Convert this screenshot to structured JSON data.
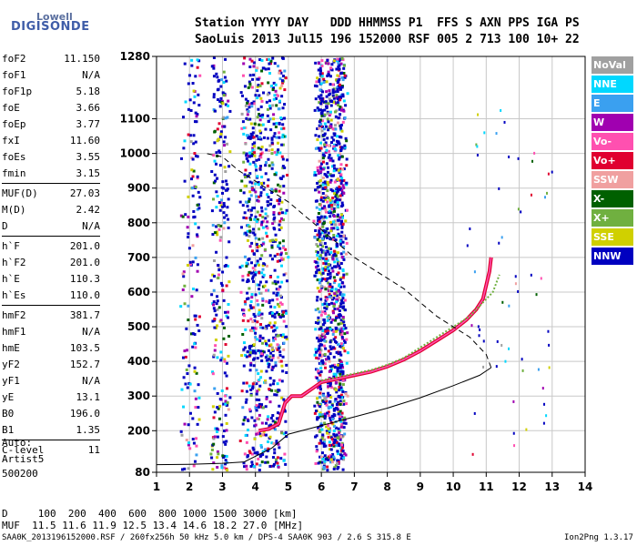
{
  "logo": {
    "top": "Lowell",
    "bottom": "DIGISONDE"
  },
  "header": {
    "line1": "Station YYYY DAY   DDD HHMMSS P1  FFS S AXN PPS IGA PS",
    "line2": "SaoLuis 2013 Jul15 196 152000 RSF 005 2 713 100 10+ 22"
  },
  "params": [
    {
      "group": [
        [
          "foF2",
          "11.150"
        ],
        [
          "foF1",
          "N/A"
        ],
        [
          "foF1p",
          "5.18"
        ],
        [
          "foE",
          "3.66"
        ],
        [
          "foEp",
          "3.77"
        ],
        [
          "fxI",
          "11.60"
        ],
        [
          "foEs",
          "3.55"
        ],
        [
          "fmin",
          "3.15"
        ]
      ]
    },
    {
      "group": [
        [
          "MUF(D)",
          "27.03"
        ],
        [
          "M(D)",
          "2.42"
        ],
        [
          "D",
          "N/A"
        ]
      ]
    },
    {
      "group": [
        [
          "h`F",
          "201.0"
        ],
        [
          "h`F2",
          "201.0"
        ],
        [
          "h`E",
          "110.3"
        ],
        [
          "h`Es",
          "110.0"
        ]
      ]
    },
    {
      "group": [
        [
          "hmF2",
          "381.7"
        ],
        [
          "hmF1",
          "N/A"
        ],
        [
          "hmE",
          "103.5"
        ],
        [
          "yF2",
          "152.7"
        ],
        [
          "yF1",
          "N/A"
        ],
        [
          "yE",
          "13.1"
        ],
        [
          "B0",
          "196.0"
        ],
        [
          "B1",
          "1.35"
        ]
      ]
    },
    {
      "group": [
        [
          "C-level",
          "11"
        ]
      ]
    }
  ],
  "notes": [
    "Auto:",
    "Artist5",
    "500200"
  ],
  "dmuf": {
    "d_line": "D     100  200  400  600  800 1000 1500 3000 [km]",
    "muf_line": "MUF  11.5 11.6 11.9 12.5 13.4 14.6 18.2 27.0 [MHz]"
  },
  "footer": {
    "left": "SAA0K_2013196152000.RSF / 260fx256h 50 kHz 5.0 km / DPS-4 SAA0K 903 / 2.6 S 315.8 E",
    "right": "Ion2Png 1.3.17"
  },
  "legend": [
    {
      "label": "NoVal",
      "color": "#a0a0a0"
    },
    {
      "label": "NNE",
      "color": "#00d8ff"
    },
    {
      "label": "E",
      "color": "#3aa0f0"
    },
    {
      "label": "W",
      "color": "#a000b0"
    },
    {
      "label": "Vo-",
      "color": "#ff50b0"
    },
    {
      "label": "Vo+",
      "color": "#e00030"
    },
    {
      "label": "SSW",
      "color": "#f0a0a0"
    },
    {
      "label": "X-",
      "color": "#006000"
    },
    {
      "label": "X+",
      "color": "#70b040"
    },
    {
      "label": "SSE",
      "color": "#d0d000"
    },
    {
      "label": "NNW",
      "color": "#0000c0"
    }
  ],
  "chart_data": {
    "type": "scatter",
    "title": "",
    "xlabel": "",
    "ylabel": "",
    "x_unit": "MHz",
    "y_unit": "km",
    "xlim": [
      1,
      14
    ],
    "ylim": [
      80,
      1280
    ],
    "x_ticks": [
      1,
      2,
      3,
      4,
      5,
      6,
      7,
      8,
      9,
      10,
      11,
      12,
      13,
      14
    ],
    "y_ticks": [
      80,
      200,
      300,
      400,
      500,
      600,
      700,
      800,
      900,
      1000,
      1100,
      1280
    ],
    "grid": true,
    "legend_position": "right",
    "series": [
      {
        "kind": "o-trace",
        "points": [
          [
            4.1,
            200
          ],
          [
            4.4,
            205
          ],
          [
            4.7,
            220
          ],
          [
            4.9,
            280
          ],
          [
            5.1,
            300
          ],
          [
            5.4,
            300
          ],
          [
            5.7,
            320
          ],
          [
            6.0,
            340
          ],
          [
            6.5,
            350
          ],
          [
            7.0,
            360
          ],
          [
            7.5,
            370
          ],
          [
            8.0,
            385
          ],
          [
            8.5,
            405
          ],
          [
            9.0,
            430
          ],
          [
            9.5,
            460
          ],
          [
            10.0,
            490
          ],
          [
            10.4,
            520
          ],
          [
            10.7,
            550
          ],
          [
            10.9,
            580
          ],
          [
            11.0,
            620
          ],
          [
            11.1,
            660
          ],
          [
            11.15,
            700
          ]
        ]
      },
      {
        "kind": "x-trace",
        "points": [
          [
            6.0,
            345
          ],
          [
            6.5,
            355
          ],
          [
            7.0,
            365
          ],
          [
            7.5,
            375
          ],
          [
            8.0,
            390
          ],
          [
            8.5,
            410
          ],
          [
            9.0,
            440
          ],
          [
            9.5,
            470
          ],
          [
            10.0,
            500
          ],
          [
            10.5,
            530
          ],
          [
            10.9,
            570
          ],
          [
            11.2,
            600
          ],
          [
            11.4,
            650
          ]
        ]
      },
      {
        "kind": "true-height-profile",
        "points": [
          [
            1,
            102
          ],
          [
            2,
            103
          ],
          [
            3,
            106
          ],
          [
            3.66,
            110
          ],
          [
            4.5,
            150
          ],
          [
            5,
            190
          ],
          [
            6,
            215
          ],
          [
            7,
            240
          ],
          [
            8,
            265
          ],
          [
            9,
            295
          ],
          [
            10,
            330
          ],
          [
            10.8,
            360
          ],
          [
            11.15,
            382
          ]
        ]
      },
      {
        "kind": "extrapolated-topside",
        "points": [
          [
            11.15,
            382
          ],
          [
            11.0,
            420
          ],
          [
            10.5,
            470
          ],
          [
            10.0,
            500
          ],
          [
            9.5,
            530
          ],
          [
            9.0,
            570
          ],
          [
            8.5,
            610
          ],
          [
            8.0,
            640
          ],
          [
            7.5,
            670
          ],
          [
            7.0,
            700
          ],
          [
            6.5,
            740
          ],
          [
            6.0,
            780
          ],
          [
            5.5,
            820
          ],
          [
            5.0,
            860
          ],
          [
            4.5,
            890
          ],
          [
            4.0,
            920
          ],
          [
            3.5,
            950
          ],
          [
            3.0,
            990
          ],
          [
            2.5,
            1000
          ]
        ]
      }
    ]
  }
}
